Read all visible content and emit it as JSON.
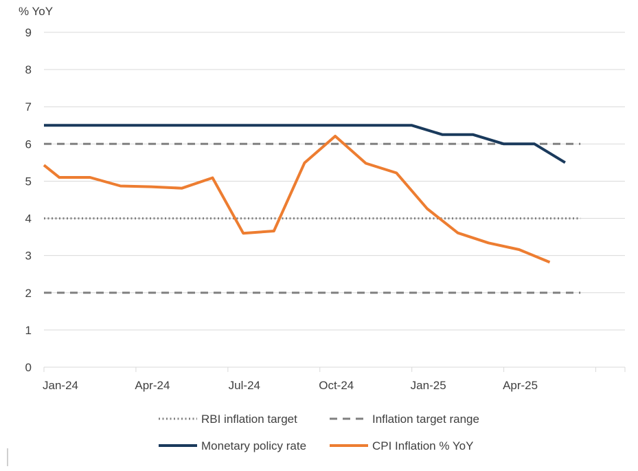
{
  "chart_data": {
    "type": "line",
    "y_unit_label": "% YoY",
    "ylim": [
      0,
      9
    ],
    "y_ticks": [
      0,
      1,
      2,
      3,
      4,
      5,
      6,
      7,
      8,
      9
    ],
    "y_tick_labels": [
      "0",
      "1",
      "2",
      "3",
      "4",
      "5",
      "6",
      "7",
      "8",
      "9"
    ],
    "x_range": [
      0,
      18
    ],
    "x_ticks": [
      0,
      3,
      6,
      9,
      12,
      15
    ],
    "x_tick_labels": [
      "Jan-24",
      "Apr-24",
      "Jul-24",
      "Oct-24",
      "Jan-25",
      "Apr-25"
    ],
    "grid": "horizontal",
    "series": [
      {
        "name": "RBI inflation target",
        "style": "dotted",
        "color": "#808080",
        "x": [
          0,
          17.5
        ],
        "values": [
          4,
          4
        ]
      },
      {
        "name": "Inflation target range",
        "style": "dashed",
        "color": "#808080",
        "x": [
          0,
          17.5
        ],
        "values": [
          6,
          6
        ],
        "values_lower": [
          2,
          2
        ]
      },
      {
        "name": "Monetary policy rate",
        "style": "solid",
        "color": "#1a3a5c",
        "x": [
          0,
          1,
          2,
          3,
          4,
          5,
          6,
          7,
          8,
          9,
          10,
          11,
          12,
          13,
          14,
          15,
          16,
          17
        ],
        "values": [
          6.5,
          6.5,
          6.5,
          6.5,
          6.5,
          6.5,
          6.5,
          6.5,
          6.5,
          6.5,
          6.5,
          6.5,
          6.5,
          6.25,
          6.25,
          6.0,
          6.0,
          5.5
        ]
      },
      {
        "name": "CPI Inflation % YoY",
        "style": "solid",
        "color": "#ed7d31",
        "x": [
          0,
          0.5,
          1.5,
          2.5,
          3.5,
          4.5,
          5.5,
          6.5,
          7.5,
          8.5,
          9.5,
          10.5,
          11.5,
          12.5,
          13.5,
          14.5,
          15.5,
          16.5
        ],
        "values": [
          5.43,
          5.1,
          5.1,
          4.87,
          4.85,
          4.81,
          5.09,
          3.6,
          3.66,
          5.49,
          6.21,
          5.48,
          5.22,
          4.26,
          3.61,
          3.34,
          3.16,
          2.82
        ]
      }
    ],
    "legend": {
      "placement": "bottom",
      "entries": [
        "RBI inflation target",
        "Inflation target range",
        "Monetary policy rate",
        "CPI Inflation % YoY"
      ]
    }
  }
}
